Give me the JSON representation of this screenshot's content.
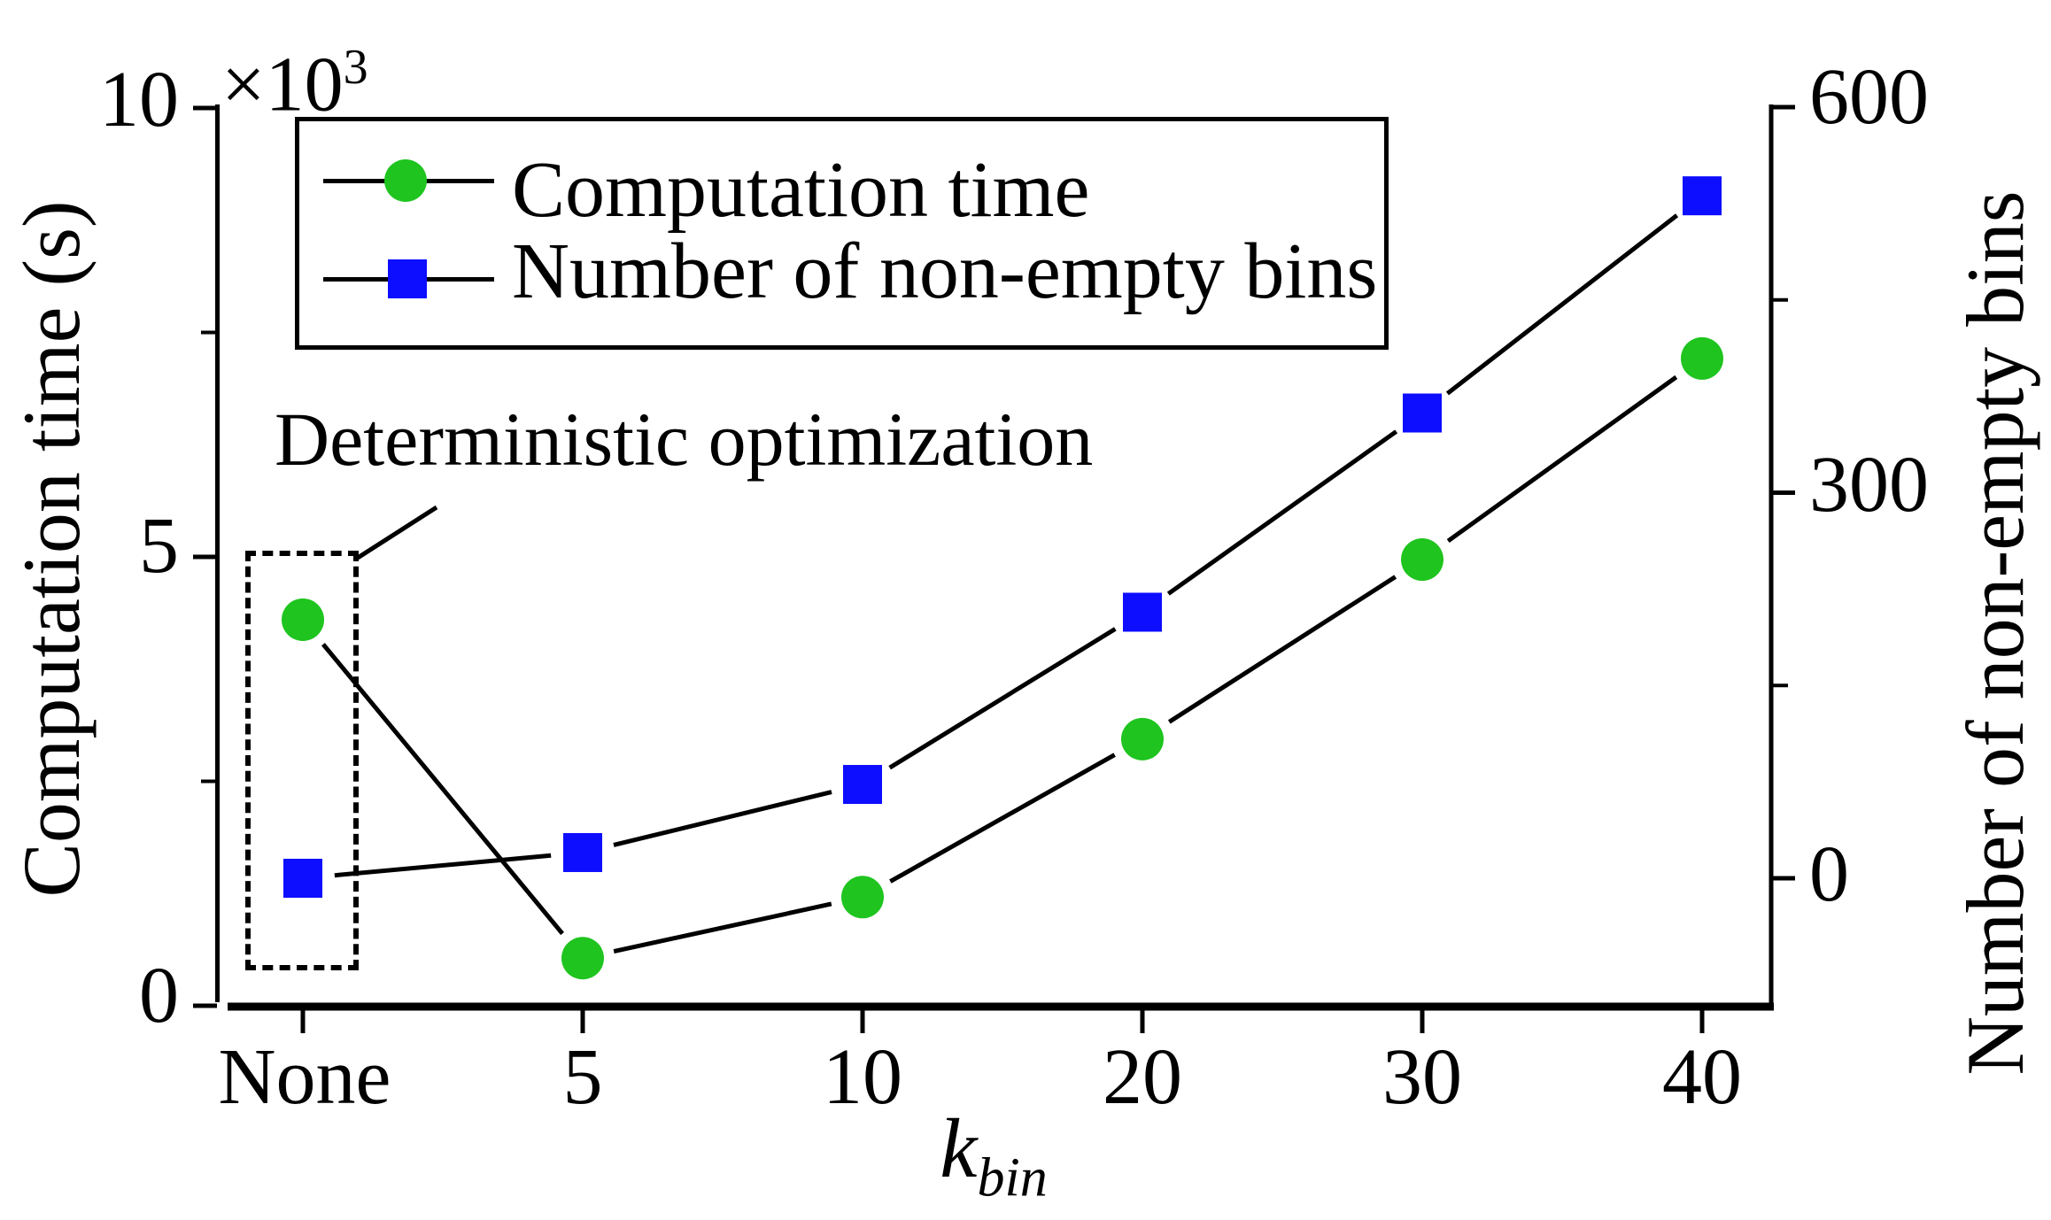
{
  "chart_data": {
    "type": "line",
    "categories": [
      "None",
      "5",
      "10",
      "20",
      "30",
      "40"
    ],
    "x_axis": {
      "label_base": "k",
      "label_sub": "bin"
    },
    "left_axis": {
      "label": "Computation time (s)",
      "multiplier_base": "×10",
      "multiplier_exp": "3",
      "tick_labels": [
        "0",
        "5",
        "10"
      ],
      "ticks_value_s": [
        0,
        5000,
        10000
      ],
      "minor_ticks_value_s": [
        2500,
        7500
      ],
      "ylim_s": [
        0,
        10040
      ]
    },
    "right_axis": {
      "label": "Number of non-empty bins",
      "tick_labels": [
        "0",
        "300",
        "600"
      ],
      "ticks": [
        0,
        300,
        600
      ],
      "minor_ticks": [
        150,
        450
      ],
      "ylim": [
        -100,
        610
      ]
    },
    "series": [
      {
        "name": "Computation time",
        "axis": "left",
        "marker": "circle",
        "color": "#1fc41f",
        "values_s": [
          4300,
          530,
          1210,
          2970,
          4970,
          7210
        ]
      },
      {
        "name": "Number of non-empty bins",
        "axis": "right",
        "marker": "square",
        "color": "#0d0dff",
        "values": [
          0,
          20,
          73,
          207,
          362,
          531
        ]
      }
    ],
    "annotation": {
      "text": "Deterministic optimization",
      "target": "None column (first data points)"
    },
    "line_color": "#000000",
    "legend_position": "upper-left-inside",
    "grid": false
  }
}
